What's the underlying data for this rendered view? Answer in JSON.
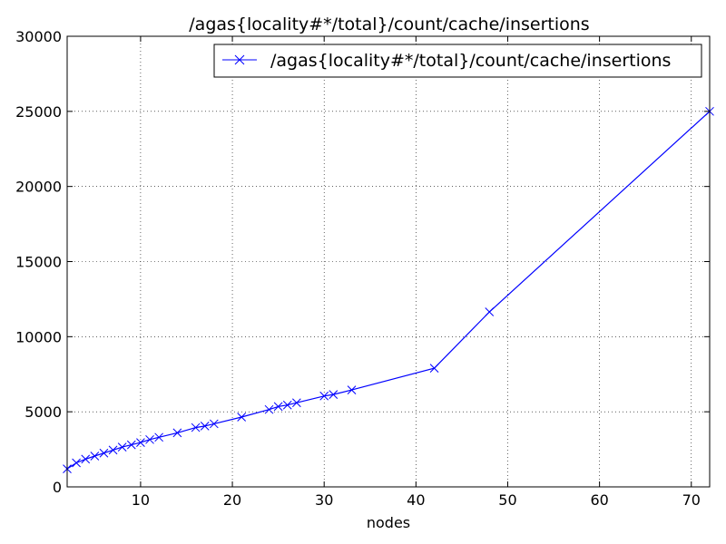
{
  "chart_data": {
    "type": "line",
    "title": "/agas{locality#*/total}/count/cache/insertions",
    "xlabel": "nodes",
    "ylabel": "",
    "xlim": [
      2,
      72
    ],
    "ylim": [
      0,
      30000
    ],
    "x_ticks": [
      10,
      20,
      30,
      40,
      50,
      60,
      70
    ],
    "y_ticks": [
      0,
      5000,
      10000,
      15000,
      20000,
      25000,
      30000
    ],
    "grid": true,
    "legend_position": "top-right",
    "series": [
      {
        "name": "/agas{locality#*/total}/count/cache/insertions",
        "color": "#0000ff",
        "marker": "x",
        "x": [
          2,
          3,
          4,
          5,
          6,
          7,
          8,
          9,
          10,
          11,
          12,
          14,
          16,
          17,
          18,
          21,
          24,
          25,
          26,
          27,
          30,
          31,
          33,
          42,
          48,
          72
        ],
        "y": [
          1200,
          1600,
          1850,
          2050,
          2250,
          2450,
          2650,
          2800,
          2950,
          3150,
          3300,
          3600,
          3950,
          4050,
          4200,
          4650,
          5150,
          5350,
          5450,
          5600,
          6050,
          6150,
          6450,
          7900,
          11650,
          25000
        ]
      }
    ]
  }
}
